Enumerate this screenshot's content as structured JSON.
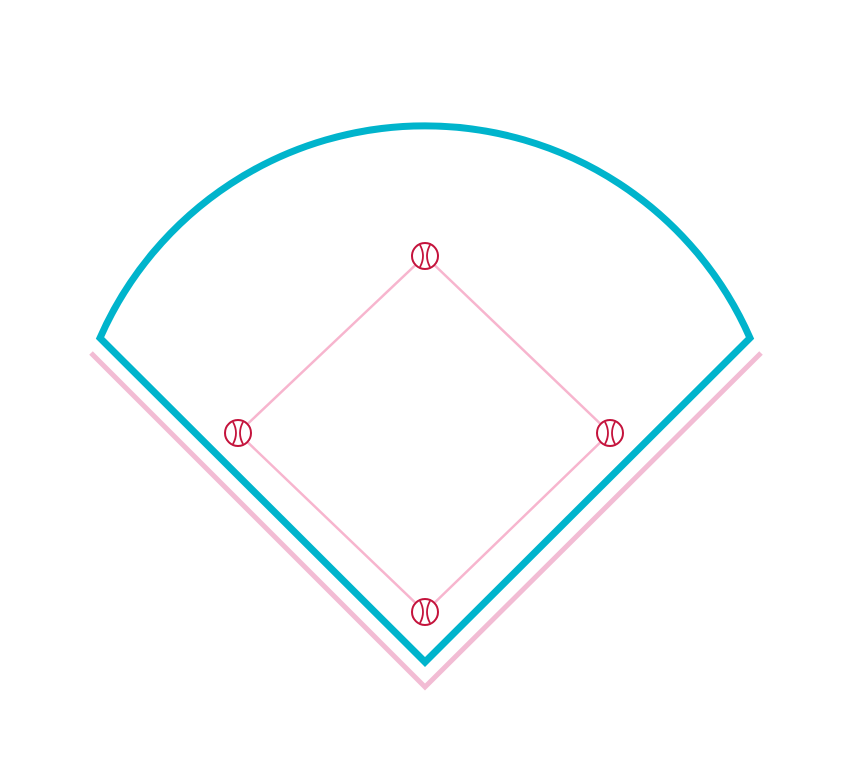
{
  "diagram": {
    "type": "baseball-field",
    "colors": {
      "background": "#ffffff",
      "field_outline": "#00b4cc",
      "foul_line_shadow": "#f2bcd4",
      "basepath": "#f7b5ce",
      "base_ball": "#c4133c"
    },
    "icons": {
      "base": "baseball-icon"
    },
    "bases": [
      {
        "id": "second-base",
        "icon": "baseball-icon"
      },
      {
        "id": "first-base",
        "icon": "baseball-icon"
      },
      {
        "id": "home-plate",
        "icon": "baseball-icon"
      },
      {
        "id": "third-base",
        "icon": "baseball-icon"
      }
    ]
  }
}
